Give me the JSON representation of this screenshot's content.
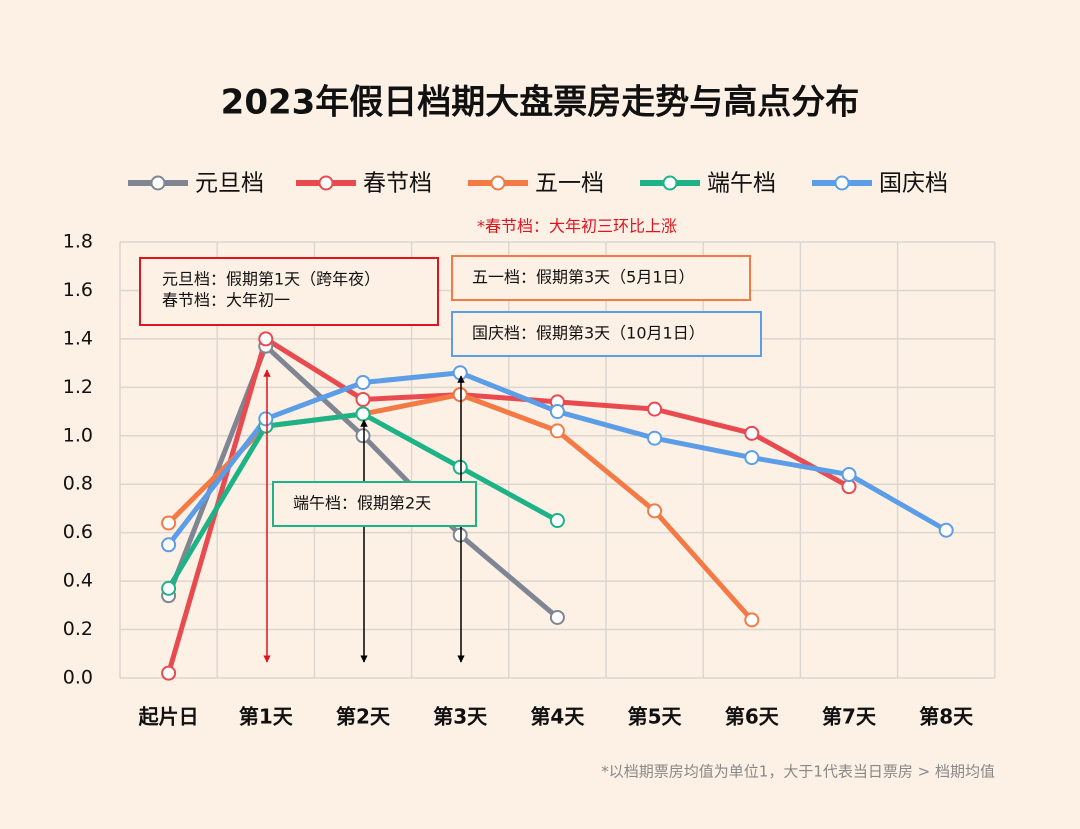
{
  "chart_data": {
    "type": "line",
    "title": "2023年假日档期大盘票房走势与高点分布",
    "categories": [
      "起片日",
      "第1天",
      "第2天",
      "第3天",
      "第4天",
      "第5天",
      "第6天",
      "第7天",
      "第8天"
    ],
    "series": [
      {
        "name": "元旦档",
        "color": "#7f8592",
        "values": [
          0.34,
          1.37,
          1.0,
          0.59,
          0.25,
          null,
          null,
          null,
          null
        ]
      },
      {
        "name": "春节档",
        "color": "#e84a4f",
        "values": [
          0.02,
          1.4,
          1.15,
          1.17,
          1.14,
          1.11,
          1.01,
          0.79,
          null
        ]
      },
      {
        "name": "五一档",
        "color": "#f47a45",
        "values": [
          0.64,
          1.04,
          1.09,
          1.17,
          1.02,
          0.69,
          0.24,
          null,
          null
        ]
      },
      {
        "name": "端午档",
        "color": "#1db387",
        "values": [
          0.37,
          1.04,
          1.09,
          0.87,
          0.65,
          null,
          null,
          null,
          null
        ]
      },
      {
        "name": "国庆档",
        "color": "#5b9de6",
        "values": [
          0.55,
          1.07,
          1.22,
          1.26,
          1.1,
          0.99,
          0.91,
          0.84,
          0.61
        ]
      }
    ],
    "ylim": [
      0,
      1.8
    ],
    "yticks": [
      {
        "value": 0,
        "label": "0.0"
      },
      0.2,
      0.4,
      0.6,
      0.8,
      {
        "value": 1,
        "label": "1.0"
      },
      1.2,
      1.4,
      1.6,
      1.8
    ],
    "grid": true,
    "note": "*春节档：大年初三环比上涨",
    "annotations": [
      {
        "lines": [
          "元旦档：假期第1天（跨年夜）",
          "春节档：大年初一"
        ]
      },
      {
        "lines": [
          "五一档：假期第3天（5月1日）"
        ]
      },
      {
        "lines": [
          "国庆档：假期第3天（10月1日）"
        ]
      },
      {
        "lines": [
          "端午档：假期第2天"
        ]
      }
    ],
    "footnote": "*以档期票房均值为单位1，大于1代表当日票房 > 档期均值"
  }
}
